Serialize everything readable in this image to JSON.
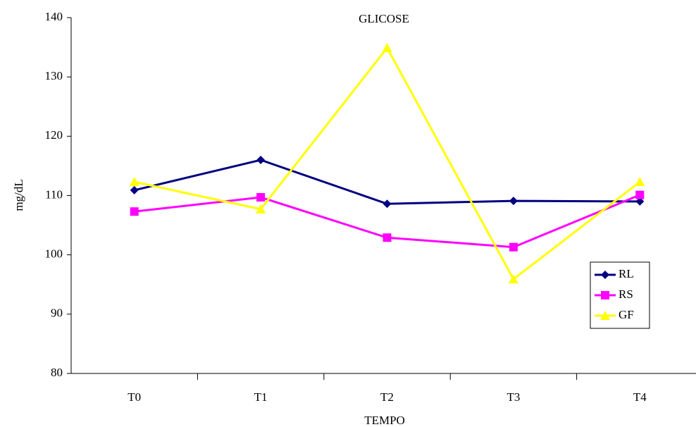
{
  "chart_data": {
    "type": "line",
    "title": "GLICOSE",
    "x_label": "TEMPO",
    "y_label": "mg/dL",
    "categories": [
      "T0",
      "T1",
      "T2",
      "T3",
      "T4"
    ],
    "series": [
      {
        "name": "RL",
        "color": "#000080",
        "marker": "diamond",
        "values": [
          110.9,
          116.0,
          108.6,
          109.1,
          109.0
        ]
      },
      {
        "name": "RS",
        "color": "#ff00ff",
        "marker": "square",
        "values": [
          107.3,
          109.7,
          102.9,
          101.3,
          110.1
        ]
      },
      {
        "name": "GF",
        "color": "#ffff00",
        "marker": "triangle",
        "values": [
          112.3,
          107.7,
          134.9,
          95.9,
          112.3
        ]
      }
    ],
    "ylim": [
      80,
      140
    ],
    "yticks": [
      80,
      90,
      100,
      110,
      120,
      130,
      140
    ],
    "grid": false,
    "legend": "right"
  }
}
